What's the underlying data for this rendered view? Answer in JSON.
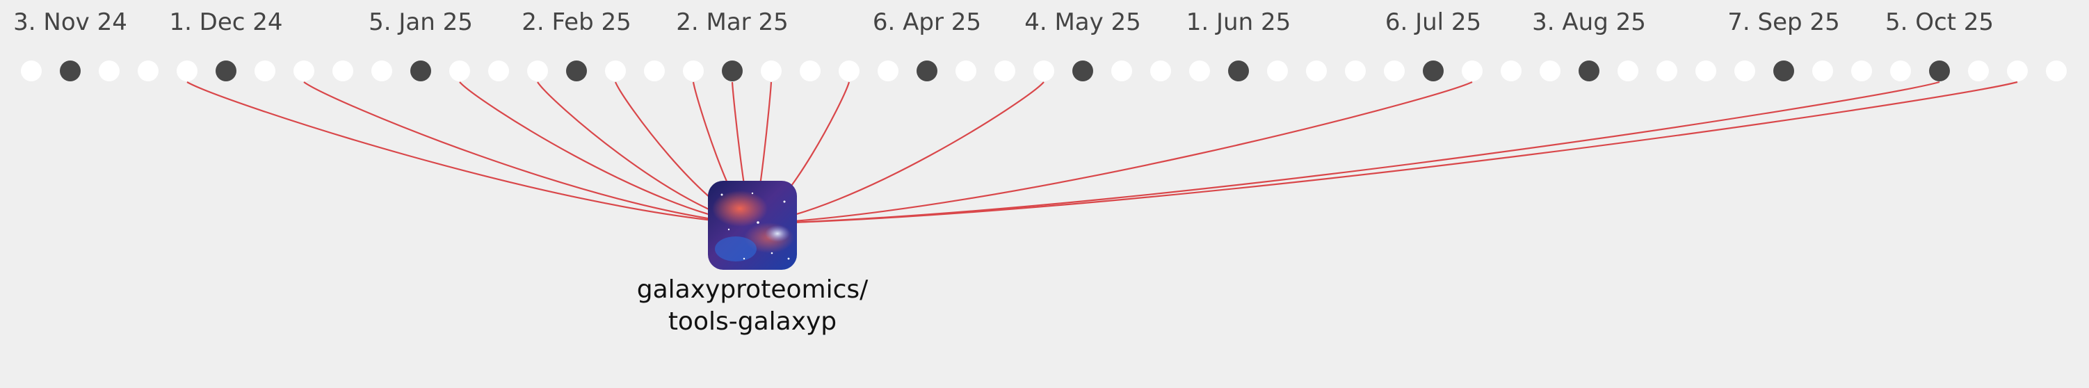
{
  "timeline": {
    "dates": [
      "3. Nov 24",
      "1. Dec 24",
      "5. Jan 25",
      "2. Feb 25",
      "2. Mar 25",
      "6. Apr 25",
      "4. May 25",
      "1. Jun 25",
      "6. Jul 25",
      "3. Aug 25",
      "7. Sep 25",
      "5. Oct 25"
    ],
    "week_count": 53,
    "highlighted_weeks": [
      1,
      5,
      10,
      14,
      18,
      23,
      27,
      31,
      36,
      40,
      45,
      49
    ],
    "linked_weeks": [
      4,
      7,
      11,
      13,
      15,
      17,
      18,
      19,
      21,
      26,
      37,
      49,
      51
    ]
  },
  "repo": {
    "name_line1": "galaxyproteomics/",
    "name_line2": "tools-galaxyp",
    "avatar_icon": "galaxy-image"
  },
  "colors": {
    "background": "#efefef",
    "dot_empty": "#ffffff",
    "dot_filled": "#474747",
    "link": "#d9474a",
    "date_text": "#444444",
    "repo_text": "#111111"
  }
}
